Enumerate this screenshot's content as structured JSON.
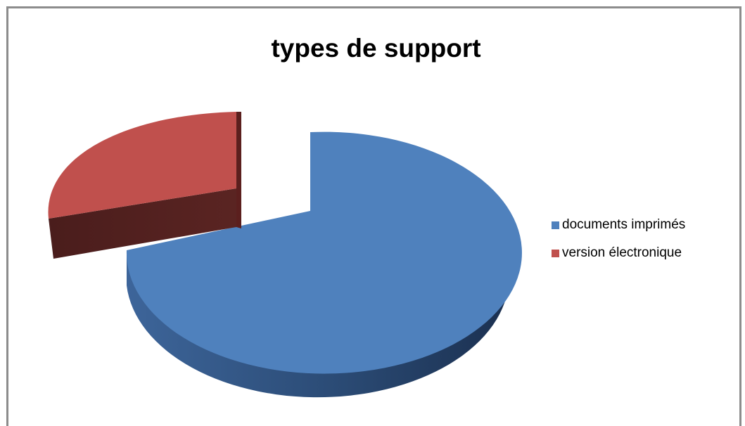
{
  "chart_data": {
    "type": "pie",
    "title": "types de support",
    "legend_position": "right",
    "slices": [
      {
        "label": "documents imprimés",
        "value": 75,
        "color": "#4f81bd"
      },
      {
        "label": "version électronique",
        "value": 25,
        "color": "#c0504d"
      }
    ]
  }
}
